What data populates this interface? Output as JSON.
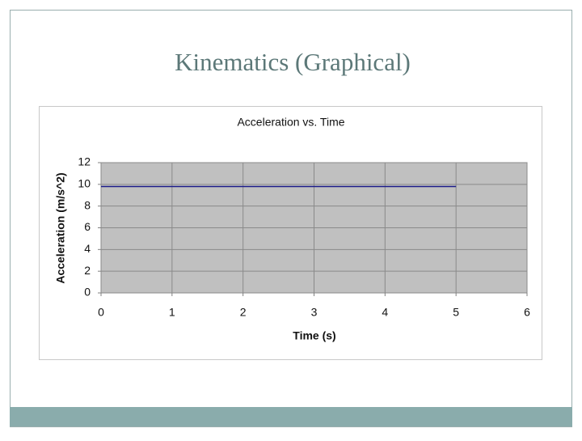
{
  "slide_title": "Kinematics (Graphical)",
  "chart_data": {
    "type": "line",
    "title": "Acceleration vs. Time",
    "x_label": "Time (s)",
    "y_label": "Acceleration (m/s^2)",
    "x": [
      0,
      1,
      2,
      3,
      4,
      5
    ],
    "series": [
      {
        "name": "Acceleration",
        "color": "#1c1c8a",
        "values": [
          9.8,
          9.8,
          9.8,
          9.8,
          9.8,
          9.8
        ]
      }
    ],
    "xlim": [
      0,
      6
    ],
    "xticks": [
      0,
      1,
      2,
      3,
      4,
      5,
      6
    ],
    "ylim": [
      0,
      12
    ],
    "yticks": [
      0,
      2,
      4,
      6,
      8,
      10,
      12
    ],
    "grid": true
  }
}
